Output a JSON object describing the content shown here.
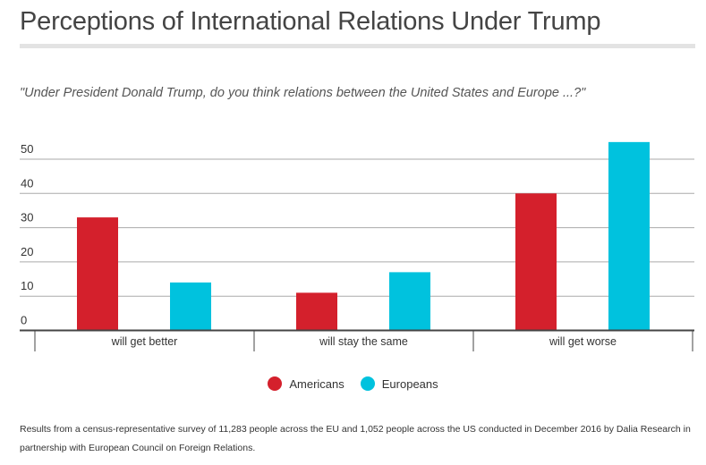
{
  "chart_data": {
    "type": "bar",
    "title": "Perceptions of International Relations Under Trump",
    "subtitle": "\"Under President Donald Trump, do you think relations between the United States and Europe ...?\"",
    "categories": [
      "will get better",
      "will stay the same",
      "will get worse"
    ],
    "series": [
      {
        "name": "Americans",
        "color": "#d4202c",
        "values": [
          33,
          11,
          40
        ]
      },
      {
        "name": "Europeans",
        "color": "#00c2de",
        "values": [
          14,
          17,
          55
        ]
      }
    ],
    "yticks": [
      0,
      10,
      20,
      30,
      40,
      50
    ],
    "ylim": [
      0,
      55
    ],
    "grid": true,
    "legend_position": "bottom-center",
    "xlabel": "",
    "ylabel": ""
  },
  "footnote": "Results from a census-representative survey of 11,283 people across the EU and 1,052 people across the US conducted in December 2016 by Dalia Research in partnership with European Council on Foreign Relations."
}
